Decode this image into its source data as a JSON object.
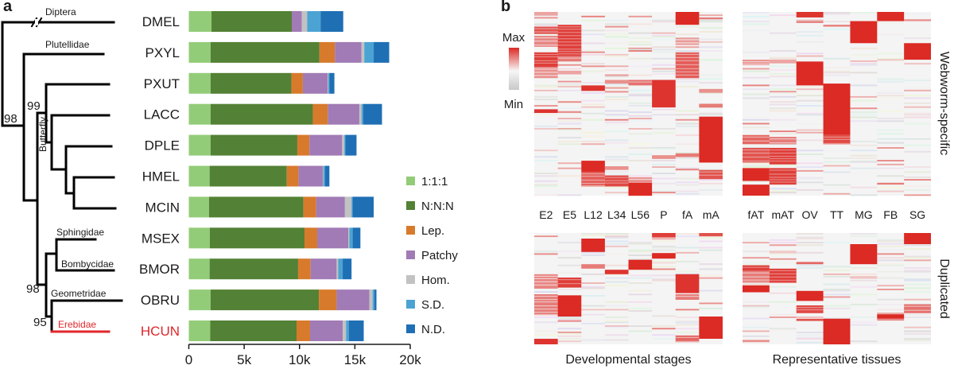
{
  "panels": {
    "a": "a",
    "b": "b"
  },
  "chart_data": [
    {
      "type": "bar",
      "orientation": "horizontal",
      "stacked": true,
      "panel": "a",
      "categories": [
        "DMEL",
        "PXYL",
        "PXUT",
        "LACC",
        "DPLE",
        "HMEL",
        "MCIN",
        "MSEX",
        "BMOR",
        "OBRU",
        "HCUN"
      ],
      "highlight_category": "HCUN",
      "highlight_color": "#e0262b",
      "series": [
        {
          "name": "1:1:1",
          "color": "#93cc78",
          "values": [
            2.05,
            1.97,
            1.97,
            1.97,
            1.97,
            1.88,
            1.83,
            1.9,
            1.88,
            1.97,
            1.93
          ]
        },
        {
          "name": "N:N:N",
          "color": "#538135",
          "values": [
            7.25,
            9.83,
            7.3,
            9.23,
            7.83,
            6.97,
            8.52,
            8.55,
            7.99,
            9.78,
            7.8
          ]
        },
        {
          "name": "Lep.",
          "color": "#d87a2c",
          "values": [
            0.0,
            1.4,
            1.03,
            1.35,
            1.1,
            1.05,
            1.15,
            1.15,
            1.13,
            1.6,
            1.22
          ]
        },
        {
          "name": "Patchy",
          "color": "#a17bb5",
          "values": [
            0.9,
            2.4,
            2.25,
            2.85,
            2.95,
            2.2,
            2.6,
            2.8,
            2.35,
            2.95,
            2.95
          ]
        },
        {
          "name": "Hom.",
          "color": "#c2c2c2",
          "values": [
            0.5,
            0.25,
            0.05,
            0.2,
            0.2,
            0.05,
            0.6,
            0.1,
            0.15,
            0.3,
            0.3
          ]
        },
        {
          "name": "S.D.",
          "color": "#4ba3d3",
          "values": [
            1.2,
            0.85,
            0.1,
            0.15,
            0.1,
            0.15,
            0.1,
            0.3,
            0.4,
            0.15,
            0.25
          ]
        },
        {
          "name": "N.D.",
          "color": "#1f6fb4",
          "values": [
            2.05,
            1.4,
            0.45,
            1.7,
            1.0,
            0.4,
            1.9,
            0.7,
            0.8,
            0.2,
            1.35
          ]
        }
      ],
      "value_units": "thousands of genes",
      "xlim": [
        0,
        20
      ],
      "xticks": [
        0,
        5,
        10,
        15,
        20
      ],
      "xtick_labels": [
        "0",
        "5k",
        "10k",
        "15k",
        "20k"
      ],
      "xlabel": "",
      "legend_position": "right",
      "tree": {
        "clade_labels": [
          "Diptera",
          "Plutellidae",
          "Butterfly",
          "Sphingidae",
          "Bombycidae",
          "Geometridae",
          "Erebidae"
        ],
        "bootstrap_labels": [
          "98",
          "99",
          "98",
          "95"
        ]
      }
    },
    {
      "type": "heatmap",
      "panel": "b",
      "colorbar": {
        "max_label": "Max",
        "min_label": "Min",
        "max_color": "#dc2a24",
        "mid_color": "#f6f6f6",
        "min_color": "#c8c8c8"
      },
      "row_labels": [
        "Webworm-specific",
        "Duplicated"
      ],
      "column_groups": [
        {
          "title": "Developmental stages",
          "columns": [
            "E2",
            "E5",
            "L12",
            "L34",
            "L56",
            "P",
            "fA",
            "mA"
          ]
        },
        {
          "title": "Representative tissues",
          "columns": [
            "fAT",
            "mAT",
            "OV",
            "TT",
            "MG",
            "FB",
            "SG"
          ]
        }
      ],
      "grids": [
        {
          "name": "webworm-specific-stages",
          "row": 0,
          "group": 0,
          "blocks": [
            [
              6,
              0.0,
              0.07,
              1.0
            ],
            [
              0,
              0.0,
              0.02,
              0.4
            ],
            [
              7,
              0.03,
              0.04,
              0.6
            ],
            [
              0,
              0.08,
              0.12,
              0.8
            ],
            [
              0,
              0.13,
              0.19,
              0.55
            ],
            [
              0,
              0.22,
              0.3,
              0.9
            ],
            [
              0,
              0.3,
              0.36,
              0.5
            ],
            [
              1,
              0.07,
              0.24,
              0.9
            ],
            [
              1,
              0.24,
              0.27,
              0.6
            ],
            [
              1,
              0.32,
              0.34,
              0.4
            ],
            [
              6,
              0.14,
              0.18,
              0.45
            ],
            [
              6,
              0.22,
              0.36,
              0.75
            ],
            [
              2,
              0.4,
              0.43,
              0.95
            ],
            [
              3,
              0.37,
              0.39,
              0.5
            ],
            [
              4,
              0.37,
              0.4,
              0.65
            ],
            [
              5,
              0.37,
              0.52,
              0.95
            ],
            [
              0,
              0.53,
              0.55,
              0.95
            ],
            [
              1,
              0.54,
              0.55,
              0.5
            ],
            [
              7,
              0.57,
              0.82,
              1.0
            ],
            [
              7,
              0.5,
              0.52,
              0.6
            ],
            [
              7,
              0.42,
              0.44,
              0.5
            ],
            [
              2,
              0.81,
              0.87,
              1.0
            ],
            [
              2,
              0.87,
              0.95,
              0.75
            ],
            [
              3,
              0.84,
              0.86,
              0.5
            ],
            [
              3,
              0.89,
              0.95,
              0.85
            ],
            [
              4,
              0.93,
              1.0,
              1.0
            ],
            [
              4,
              0.9,
              0.93,
              0.5
            ],
            [
              6,
              0.77,
              0.79,
              0.6
            ],
            [
              7,
              0.86,
              0.91,
              0.8
            ],
            [
              5,
              0.78,
              0.8,
              0.5
            ]
          ]
        },
        {
          "name": "webworm-specific-tissues",
          "row": 0,
          "group": 1,
          "blocks": [
            [
              2,
              0.0,
              0.03,
              0.95
            ],
            [
              2,
              0.05,
              0.06,
              0.6
            ],
            [
              5,
              0.0,
              0.05,
              1.0
            ],
            [
              4,
              0.05,
              0.17,
              1.0
            ],
            [
              6,
              0.17,
              0.26,
              1.0
            ],
            [
              0,
              0.26,
              0.29,
              0.5
            ],
            [
              1,
              0.26,
              0.28,
              0.4
            ],
            [
              2,
              0.27,
              0.4,
              1.0
            ],
            [
              3,
              0.39,
              0.67,
              1.0
            ],
            [
              3,
              0.67,
              0.72,
              0.85
            ],
            [
              0,
              0.67,
              0.72,
              0.7
            ],
            [
              1,
              0.68,
              0.72,
              0.6
            ],
            [
              0,
              0.74,
              0.82,
              0.8
            ],
            [
              1,
              0.74,
              0.83,
              0.9
            ],
            [
              0,
              0.85,
              0.92,
              1.0
            ],
            [
              1,
              0.85,
              0.94,
              0.9
            ],
            [
              0,
              0.94,
              1.0,
              1.0
            ],
            [
              3,
              0.07,
              0.08,
              0.6
            ],
            [
              6,
              0.04,
              0.05,
              0.5
            ],
            [
              5,
              0.93,
              0.94,
              0.6
            ]
          ]
        },
        {
          "name": "duplicated-stages",
          "row": 1,
          "group": 0,
          "blocks": [
            [
              2,
              0.05,
              0.17,
              1.0
            ],
            [
              5,
              0.0,
              0.04,
              0.9
            ],
            [
              5,
              0.18,
              0.23,
              1.0
            ],
            [
              7,
              0.0,
              0.03,
              0.8
            ],
            [
              4,
              0.24,
              0.33,
              1.0
            ],
            [
              3,
              0.33,
              0.37,
              0.95
            ],
            [
              2,
              0.28,
              0.32,
              0.6
            ],
            [
              0,
              0.37,
              0.5,
              0.55
            ],
            [
              1,
              0.4,
              0.49,
              0.9
            ],
            [
              6,
              0.37,
              0.54,
              0.95
            ],
            [
              6,
              0.55,
              0.6,
              0.6
            ],
            [
              0,
              0.55,
              0.73,
              0.6
            ],
            [
              1,
              0.56,
              0.75,
              1.0
            ],
            [
              7,
              0.75,
              0.95,
              1.0
            ],
            [
              0,
              0.95,
              1.0,
              0.95
            ],
            [
              6,
              0.92,
              0.98,
              0.7
            ]
          ]
        },
        {
          "name": "duplicated-tissues",
          "row": 1,
          "group": 1,
          "blocks": [
            [
              6,
              0.0,
              0.1,
              1.0
            ],
            [
              4,
              0.1,
              0.28,
              1.0
            ],
            [
              0,
              0.29,
              0.34,
              0.9
            ],
            [
              0,
              0.34,
              0.45,
              0.6
            ],
            [
              1,
              0.32,
              0.45,
              0.9
            ],
            [
              0,
              0.47,
              0.53,
              1.0
            ],
            [
              2,
              0.52,
              0.61,
              1.0
            ],
            [
              2,
              0.65,
              0.72,
              0.85
            ],
            [
              2,
              0.77,
              0.79,
              0.8
            ],
            [
              3,
              0.77,
              1.0,
              1.0
            ],
            [
              5,
              0.73,
              0.77,
              1.0
            ],
            [
              6,
              0.64,
              0.72,
              0.65
            ],
            [
              0,
              0.96,
              0.98,
              0.5
            ],
            [
              2,
              0.26,
              0.28,
              0.7
            ]
          ]
        }
      ]
    }
  ]
}
